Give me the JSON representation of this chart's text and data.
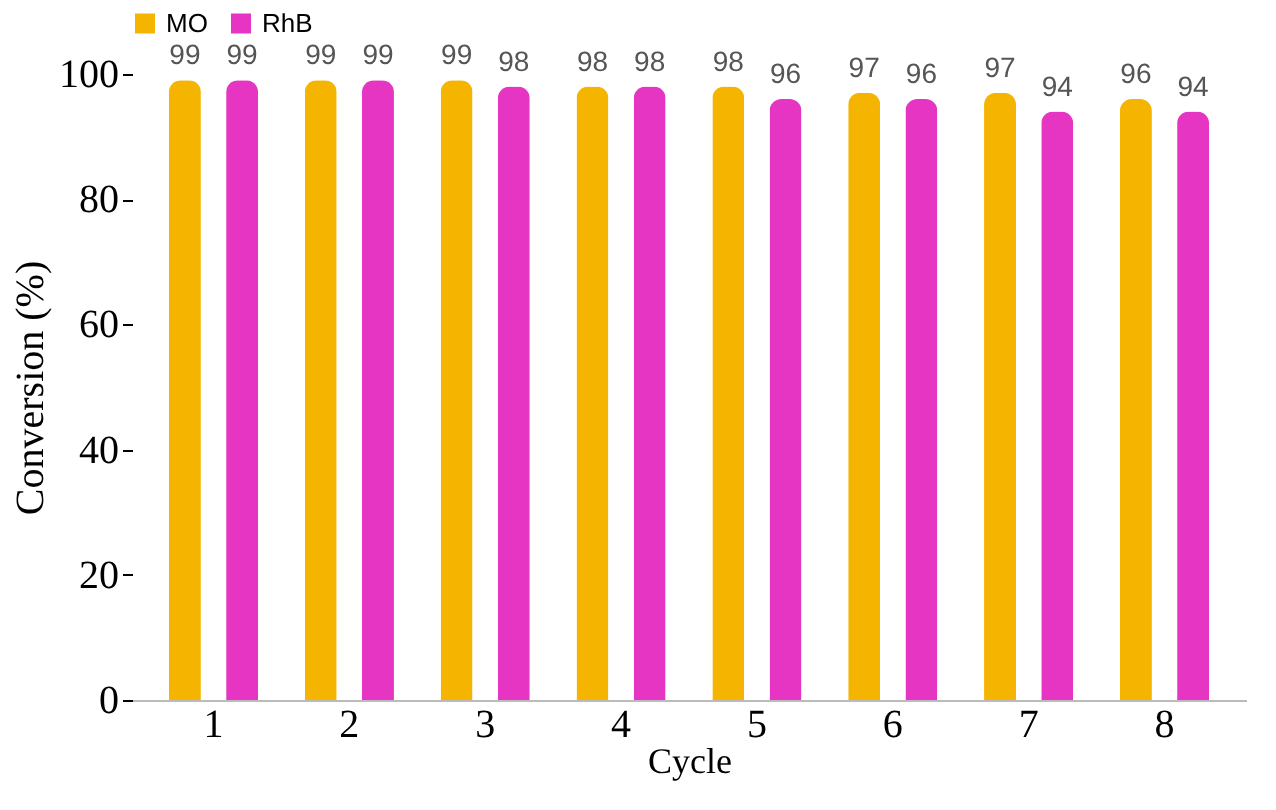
{
  "chart_data": {
    "type": "bar",
    "xlabel": "Cycle",
    "ylabel": "Conversion (%)",
    "categories": [
      "1",
      "2",
      "3",
      "4",
      "5",
      "6",
      "7",
      "8"
    ],
    "series": [
      {
        "name": "MO",
        "color": "#f5b400",
        "values": [
          99,
          99,
          99,
          98,
          98,
          97,
          97,
          96
        ]
      },
      {
        "name": "RhB",
        "color": "#e535c2",
        "values": [
          99,
          99,
          98,
          98,
          96,
          96,
          94,
          94
        ]
      }
    ],
    "ylim": [
      0,
      100
    ],
    "yticks": [
      0,
      20,
      40,
      60,
      80,
      100
    ],
    "grid": false,
    "legend": "top",
    "data_labels": true
  }
}
